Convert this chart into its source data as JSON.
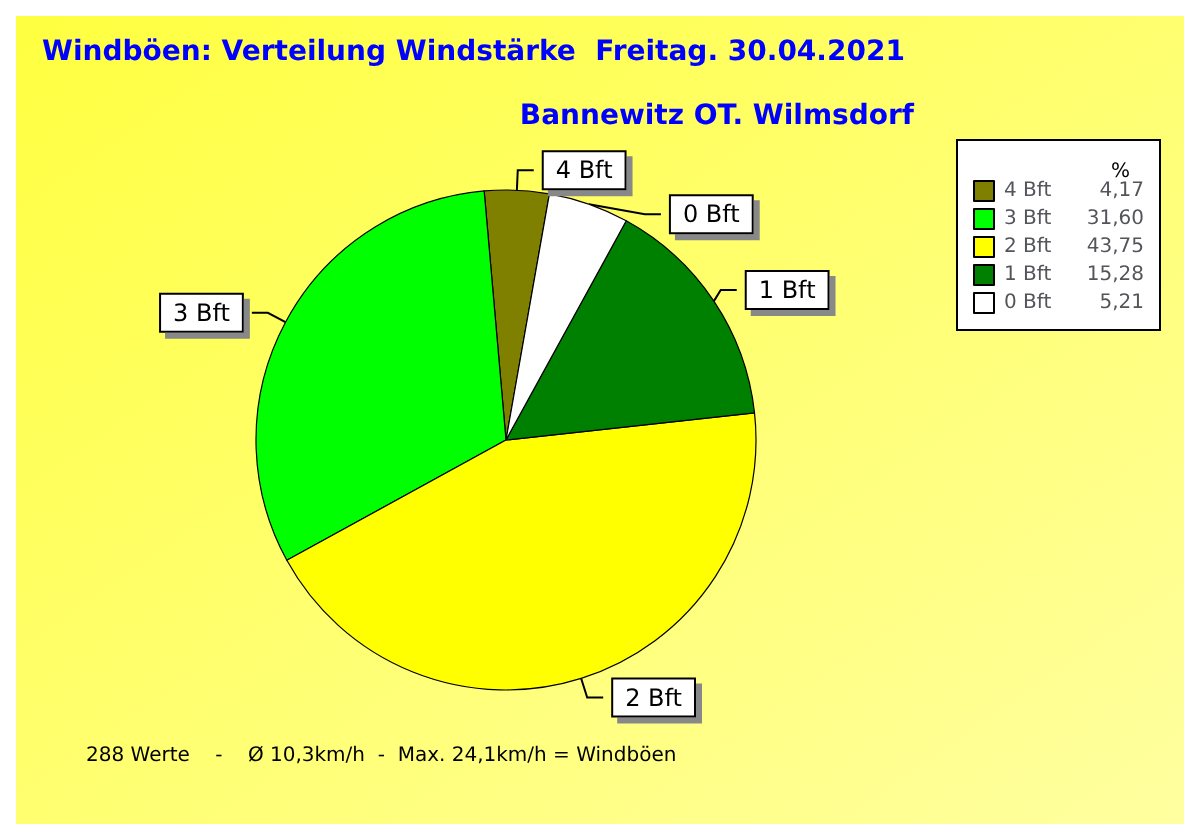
{
  "chart_data": {
    "type": "pie",
    "title": "Windböen: Verteilung Windstärke  Freitag. 30.04.2021",
    "subtitle": "Bannewitz OT. Wilmsdorf",
    "categories": [
      "4 Bft",
      "3 Bft",
      "2 Bft",
      "1 Bft",
      "0 Bft"
    ],
    "values": [
      4.17,
      31.6,
      43.75,
      15.28,
      5.21
    ],
    "colors": [
      "#808000",
      "#00ff00",
      "#ffff00",
      "#008000",
      "#ffffff"
    ],
    "value_labels": [
      "4,17",
      "31,60",
      "43,75",
      "15,28",
      "5,21"
    ],
    "legend": "top right",
    "legend_title": "%",
    "annotations": [
      "288 Werte    -    Ø 10,3km/h  -  Max. 24,1km/h = Windböen"
    ]
  }
}
